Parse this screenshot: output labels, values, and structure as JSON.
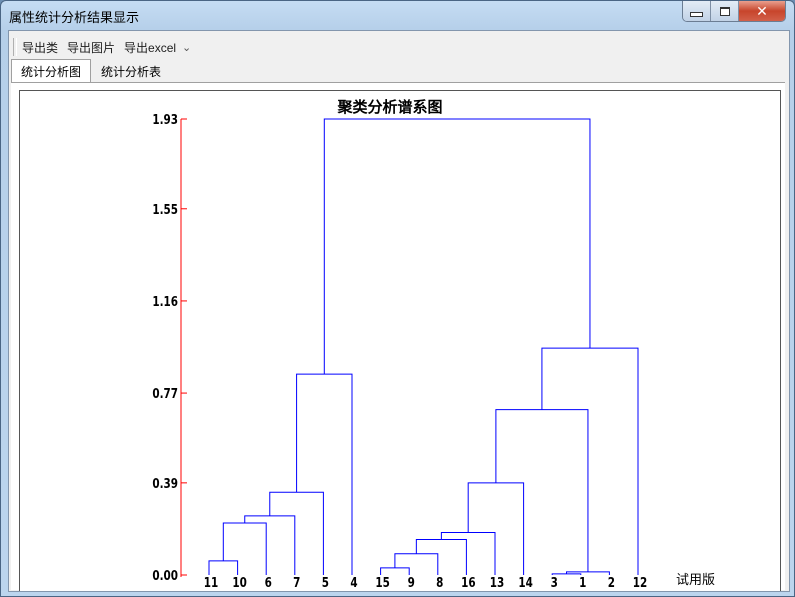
{
  "window": {
    "title": "属性统计分析结果显示",
    "controls": [
      "minimize-icon",
      "maximize-icon",
      "close-icon"
    ]
  },
  "toolbar": {
    "items": [
      "导出类",
      "导出图片",
      "导出excel"
    ],
    "more_icon": "chevron-down-icon"
  },
  "tabs": [
    {
      "label": "统计分析图",
      "active": true
    },
    {
      "label": "统计分析表",
      "active": false
    }
  ],
  "watermark": "试用版",
  "colors": {
    "axis": "#ff0000",
    "links": "#0000ff",
    "text": "#000000"
  },
  "chart_data": {
    "type": "dendrogram",
    "title": "聚类分析谱系图",
    "ylim": [
      0,
      1.93
    ],
    "yticks": [
      "0.00",
      "0.39",
      "0.77",
      "1.16",
      "1.55",
      "1.93"
    ],
    "leaf_order": [
      "11",
      "10",
      "6",
      "7",
      "5",
      "4",
      "15",
      "9",
      "8",
      "16",
      "13",
      "14",
      "3",
      "1",
      "2",
      "12"
    ],
    "merges": [
      {
        "id": "m1",
        "a": "11",
        "b": "10",
        "height": 0.06
      },
      {
        "id": "m2",
        "a": "m1",
        "b": "6",
        "height": 0.22
      },
      {
        "id": "m3",
        "a": "m2",
        "b": "7",
        "height": 0.25
      },
      {
        "id": "m4",
        "a": "m3",
        "b": "5",
        "height": 0.35
      },
      {
        "id": "m5",
        "a": "m4",
        "b": "4",
        "height": 0.85
      },
      {
        "id": "m6",
        "a": "15",
        "b": "9",
        "height": 0.03
      },
      {
        "id": "m7",
        "a": "m6",
        "b": "8",
        "height": 0.09
      },
      {
        "id": "m8",
        "a": "m7",
        "b": "16",
        "height": 0.15
      },
      {
        "id": "m9",
        "a": "m8",
        "b": "13",
        "height": 0.18
      },
      {
        "id": "m10",
        "a": "m9",
        "b": "14",
        "height": 0.39
      },
      {
        "id": "m11",
        "a": "3",
        "b": "1",
        "height": 0.005
      },
      {
        "id": "m12",
        "a": "m11",
        "b": "2",
        "height": 0.013
      },
      {
        "id": "m13",
        "a": "m10",
        "b": "m12",
        "height": 0.7
      },
      {
        "id": "m14",
        "a": "m13",
        "b": "12",
        "height": 0.96
      },
      {
        "id": "m15",
        "a": "m5",
        "b": "m14",
        "height": 1.93
      }
    ]
  }
}
